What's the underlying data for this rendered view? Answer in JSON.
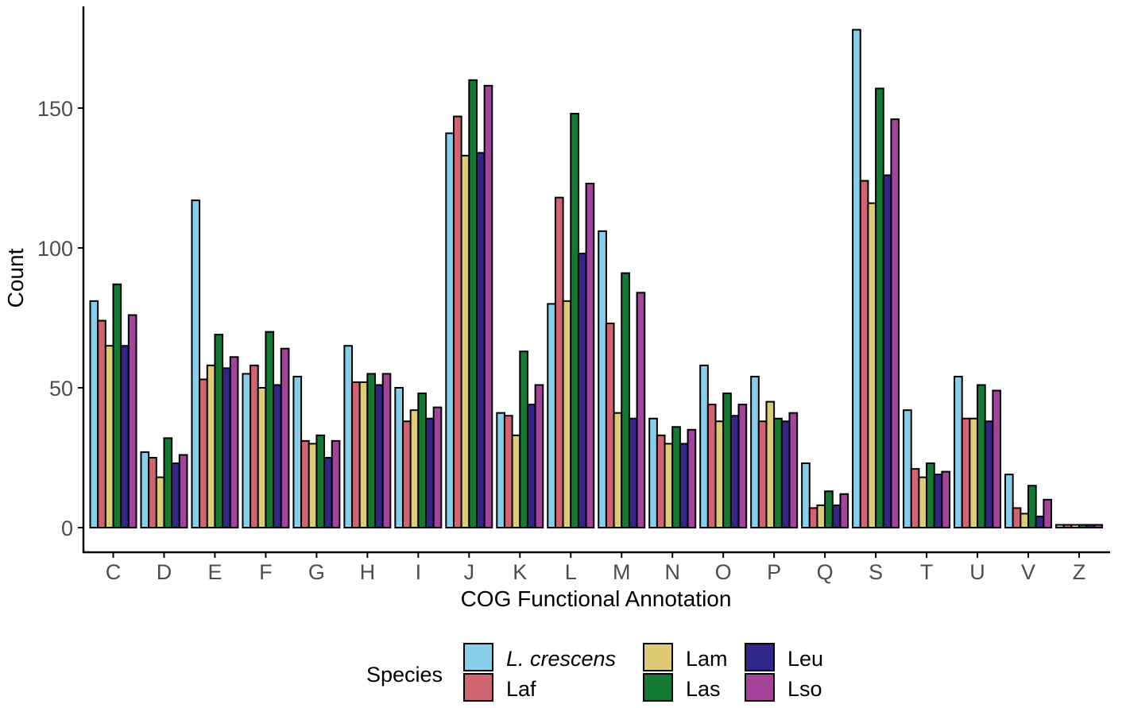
{
  "chart_data": {
    "type": "bar",
    "title": "",
    "xlabel": "COG Functional Annotation",
    "ylabel": "Count",
    "ylim": [
      -8,
      188
    ],
    "yticks": [
      0,
      50,
      100,
      150
    ],
    "categories": [
      "C",
      "D",
      "E",
      "F",
      "G",
      "H",
      "I",
      "J",
      "K",
      "L",
      "M",
      "N",
      "O",
      "P",
      "Q",
      "S",
      "T",
      "U",
      "V",
      "Z"
    ],
    "series": [
      {
        "name": "L. crescens",
        "italic": true,
        "color": "#87CEEB",
        "values": [
          81,
          27,
          117,
          55,
          54,
          65,
          50,
          141,
          41,
          80,
          106,
          39,
          58,
          54,
          23,
          178,
          42,
          54,
          19,
          1
        ]
      },
      {
        "name": "Laf",
        "italic": false,
        "color": "#D06470",
        "values": [
          74,
          25,
          53,
          58,
          31,
          52,
          38,
          147,
          40,
          118,
          73,
          33,
          44,
          38,
          7,
          124,
          21,
          39,
          7,
          1
        ]
      },
      {
        "name": "Lam",
        "italic": false,
        "color": "#DFCA76",
        "values": [
          65,
          18,
          58,
          50,
          30,
          52,
          42,
          133,
          33,
          81,
          41,
          30,
          38,
          45,
          8,
          116,
          18,
          39,
          5,
          1
        ]
      },
      {
        "name": "Las",
        "italic": false,
        "color": "#127A33",
        "values": [
          87,
          32,
          69,
          70,
          33,
          55,
          48,
          160,
          63,
          148,
          91,
          36,
          48,
          39,
          13,
          157,
          23,
          51,
          15,
          1
        ]
      },
      {
        "name": "Leu",
        "italic": false,
        "color": "#33268A",
        "values": [
          65,
          23,
          57,
          51,
          25,
          51,
          39,
          134,
          44,
          98,
          39,
          30,
          40,
          38,
          8,
          126,
          19,
          38,
          4,
          1
        ]
      },
      {
        "name": "Lso",
        "italic": false,
        "color": "#A5429B",
        "values": [
          76,
          26,
          61,
          64,
          31,
          55,
          43,
          158,
          51,
          123,
          84,
          35,
          44,
          41,
          12,
          146,
          20,
          49,
          10,
          1
        ]
      }
    ],
    "legend": {
      "title": "Species",
      "placement": "bottom"
    },
    "grid": false
  }
}
